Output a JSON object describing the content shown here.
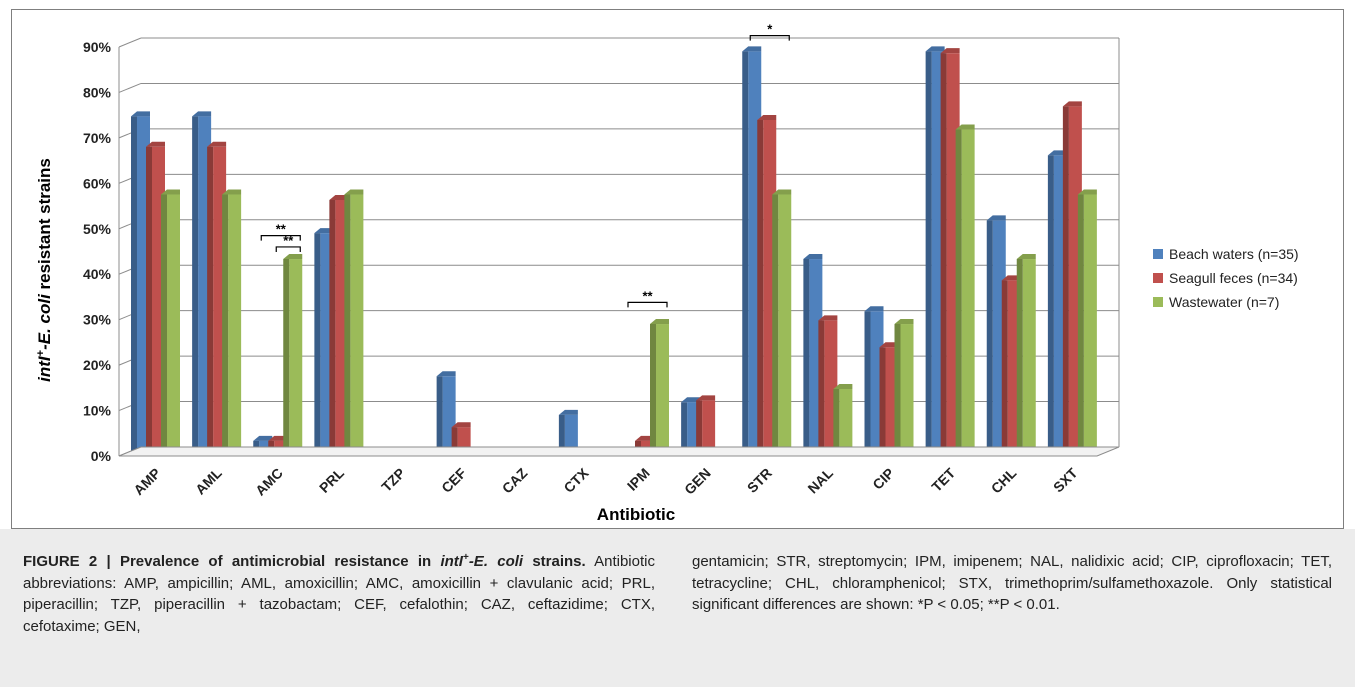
{
  "chart_data": {
    "type": "bar",
    "xlabel": "Antibiotic",
    "ylabel_it": "intI",
    "ylabel_sup": "+",
    "ylabel_rest_it": "-E. coli",
    "ylabel_rest": " resistant strains",
    "ylim": [
      0,
      90
    ],
    "y_ticks": [
      "0%",
      "10%",
      "20%",
      "30%",
      "40%",
      "50%",
      "60%",
      "70%",
      "80%",
      "90%"
    ],
    "y_tick_values": [
      0,
      10,
      20,
      30,
      40,
      50,
      60,
      70,
      80,
      90
    ],
    "grid": true,
    "legend_position": "right",
    "categories": [
      "AMP",
      "AML",
      "AMC",
      "PRL",
      "TZP",
      "CEF",
      "CAZ",
      "CTX",
      "IPM",
      "GEN",
      "STR",
      "NAL",
      "CIP",
      "TET",
      "CHL",
      "SXT"
    ],
    "series": [
      {
        "name": "Beach waters (n=35)",
        "color": "#4f81bd",
        "values": [
          74.3,
          74.3,
          2.9,
          48.6,
          0,
          17.1,
          0,
          8.6,
          0,
          11.4,
          88.6,
          42.9,
          31.4,
          88.6,
          51.4,
          65.7
        ]
      },
      {
        "name": "Seagull feces (n=34)",
        "color": "#c0504d",
        "values": [
          67.6,
          67.6,
          2.9,
          55.9,
          0,
          5.9,
          0,
          0,
          2.9,
          11.8,
          73.5,
          29.4,
          23.5,
          88.2,
          38.2,
          76.5
        ]
      },
      {
        "name": "Wastewater (n=7)",
        "color": "#9bbb59",
        "values": [
          57.1,
          57.1,
          42.9,
          57.1,
          0,
          0,
          0,
          0,
          28.6,
          0,
          57.1,
          14.3,
          28.6,
          71.4,
          42.9,
          57.1
        ]
      }
    ],
    "annotations": [
      {
        "label": "**",
        "category": "AMC",
        "from_series": 0,
        "to_series": 2,
        "level": 48.5
      },
      {
        "label": "**",
        "category": "AMC",
        "from_series": 1,
        "to_series": 2,
        "level": 46.0
      },
      {
        "label": "**",
        "category": "IPM",
        "from_series": 0,
        "to_series": 2,
        "level": 33.8
      },
      {
        "label": "*",
        "category": "STR",
        "from_series": 0,
        "to_series": 2,
        "level": 92.5
      }
    ]
  },
  "caption": {
    "lead_1": "FIGURE 2 | Prevalence of antimicrobial resistance in ",
    "lead_it": "intI",
    "lead_sup": "+",
    "lead_it2": "-E. coli",
    "lead_2": " strains.",
    "left_text": " Antibiotic abbreviations: AMP, ampicillin; AML, amoxicillin; AMC, amoxicillin + clavulanic acid; PRL, piperacillin; TZP, piperacillin + tazobactam; CEF, cefalothin; CAZ, ceftazidime; CTX, cefotaxime; GEN,",
    "right_text_1": "gentamicin; STR, streptomycin; IPM, imipenem; NAL, nalidixic acid; CIP, ciprofloxacin; TET, tetracycline; CHL, chloramphenicol; STX, trimethoprim/sulfamethoxazole. Only statistical significant differences are shown: ",
    "sig_1": "*P < 0.05",
    "sep": "; ",
    "sig_2": "**P < 0.01",
    "end": "."
  }
}
